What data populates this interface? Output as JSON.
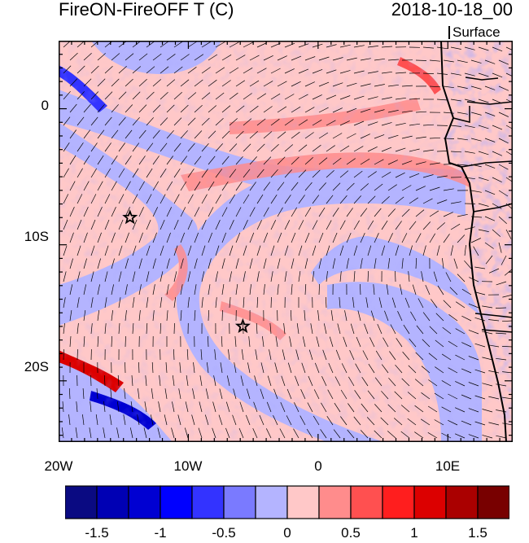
{
  "title": "FireON-FireOFF T (C)",
  "date": "2018-10-18_00",
  "level": "Surface",
  "lat_ticks": [
    "0",
    "10S",
    "20S"
  ],
  "lon_ticks": [
    "20W",
    "10W",
    "0",
    "10E"
  ],
  "markers": [
    {
      "name": "star-1",
      "lon": -14.5,
      "lat": -8
    },
    {
      "name": "star-2",
      "lon": -5.8,
      "lat": -16
    }
  ],
  "colorbar": {
    "labels": [
      "-1.5",
      "-1",
      "-0.5",
      "0",
      "0.5",
      "1",
      "1.5"
    ],
    "colors": [
      "#0a0a82",
      "#0000b4",
      "#0000d2",
      "#0000ff",
      "#3333ff",
      "#7a7aff",
      "#b4b4ff",
      "#ffc8c8",
      "#ff8c8c",
      "#ff5050",
      "#ff1e1e",
      "#dc0000",
      "#aa0000",
      "#780000"
    ]
  },
  "map": {
    "lon_range": [
      -20,
      15
    ],
    "lat_range": [
      -24.5,
      5
    ],
    "background_positive": "#ffc8c8",
    "background_negative": "#b4b4ff"
  }
}
